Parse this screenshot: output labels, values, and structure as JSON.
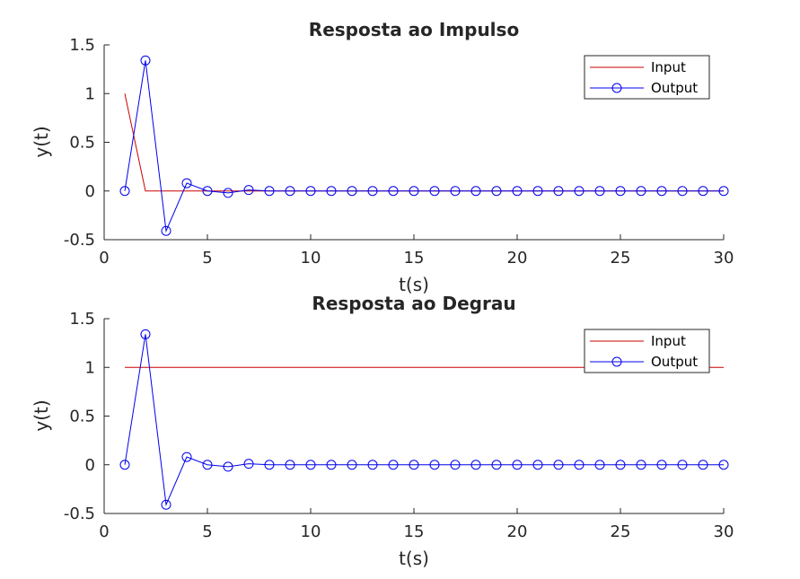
{
  "colors": {
    "input": "#cc0000",
    "output": "#0000ee",
    "axis": "#262626",
    "background": "#ffffff"
  },
  "chart_data": [
    {
      "type": "line",
      "title": "Resposta ao Impulso",
      "xlabel": "t(s)",
      "ylabel": "y(t)",
      "xlim": [
        0,
        30
      ],
      "ylim": [
        -0.5,
        1.5
      ],
      "xticks": [
        0,
        5,
        10,
        15,
        20,
        25,
        30
      ],
      "yticks": [
        -0.5,
        0,
        0.5,
        1,
        1.5
      ],
      "ytick_labels": [
        "-0.5",
        "0",
        "0.5",
        "1",
        "1.5"
      ],
      "grid": false,
      "legend": "top-right",
      "series": [
        {
          "name": "Input",
          "color": "#cc0000",
          "marker": "none",
          "x": [
            1,
            2,
            3,
            4,
            5,
            6,
            7,
            8,
            9,
            10,
            11,
            12,
            13,
            14,
            15,
            16,
            17,
            18,
            19,
            20,
            21,
            22,
            23,
            24,
            25,
            26,
            27,
            28,
            29,
            30
          ],
          "y": [
            1,
            0,
            0,
            0,
            0,
            0,
            0,
            0,
            0,
            0,
            0,
            0,
            0,
            0,
            0,
            0,
            0,
            0,
            0,
            0,
            0,
            0,
            0,
            0,
            0,
            0,
            0,
            0,
            0,
            0
          ]
        },
        {
          "name": "Output",
          "color": "#0000ee",
          "marker": "circle",
          "x": [
            1,
            2,
            3,
            4,
            5,
            6,
            7,
            8,
            9,
            10,
            11,
            12,
            13,
            14,
            15,
            16,
            17,
            18,
            19,
            20,
            21,
            22,
            23,
            24,
            25,
            26,
            27,
            28,
            29,
            30
          ],
          "y": [
            0,
            1.34,
            -0.41,
            0.08,
            0,
            -0.02,
            0.01,
            0,
            0,
            0,
            0,
            0,
            0,
            0,
            0,
            0,
            0,
            0,
            0,
            0,
            0,
            0,
            0,
            0,
            0,
            0,
            0,
            0,
            0,
            0
          ]
        }
      ]
    },
    {
      "type": "line",
      "title": "Resposta ao Degrau",
      "xlabel": "t(s)",
      "ylabel": "y(t)",
      "xlim": [
        0,
        30
      ],
      "ylim": [
        -0.5,
        1.5
      ],
      "xticks": [
        0,
        5,
        10,
        15,
        20,
        25,
        30
      ],
      "yticks": [
        -0.5,
        0,
        0.5,
        1,
        1.5
      ],
      "ytick_labels": [
        "-0.5",
        "0",
        "0.5",
        "1",
        "1.5"
      ],
      "grid": false,
      "legend": "top-right",
      "series": [
        {
          "name": "Input",
          "color": "#cc0000",
          "marker": "none",
          "x": [
            1,
            2,
            3,
            4,
            5,
            6,
            7,
            8,
            9,
            10,
            11,
            12,
            13,
            14,
            15,
            16,
            17,
            18,
            19,
            20,
            21,
            22,
            23,
            24,
            25,
            26,
            27,
            28,
            29,
            30
          ],
          "y": [
            1,
            1,
            1,
            1,
            1,
            1,
            1,
            1,
            1,
            1,
            1,
            1,
            1,
            1,
            1,
            1,
            1,
            1,
            1,
            1,
            1,
            1,
            1,
            1,
            1,
            1,
            1,
            1,
            1,
            1
          ]
        },
        {
          "name": "Output",
          "color": "#0000ee",
          "marker": "circle",
          "x": [
            1,
            2,
            3,
            4,
            5,
            6,
            7,
            8,
            9,
            10,
            11,
            12,
            13,
            14,
            15,
            16,
            17,
            18,
            19,
            20,
            21,
            22,
            23,
            24,
            25,
            26,
            27,
            28,
            29,
            30
          ],
          "y": [
            0,
            1.34,
            -0.41,
            0.08,
            0,
            -0.02,
            0.01,
            0,
            0,
            0,
            0,
            0,
            0,
            0,
            0,
            0,
            0,
            0,
            0,
            0,
            0,
            0,
            0,
            0,
            0,
            0,
            0,
            0,
            0,
            0
          ]
        }
      ]
    }
  ]
}
